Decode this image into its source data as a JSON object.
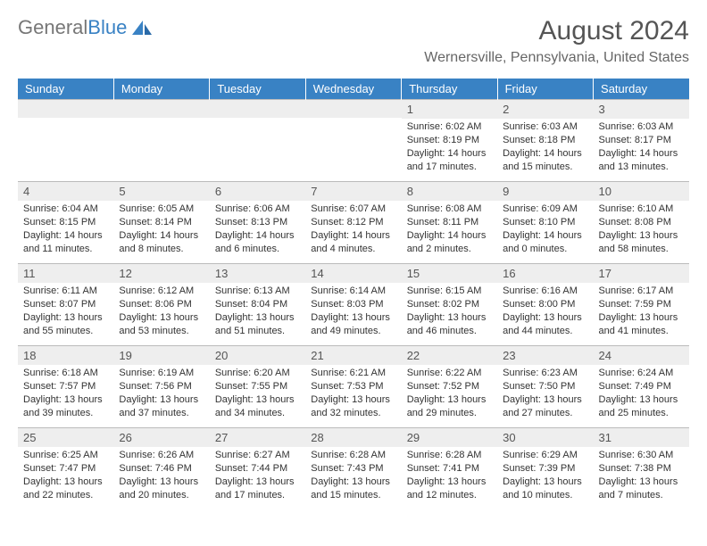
{
  "logo": {
    "text1": "General",
    "text2": "Blue"
  },
  "title": {
    "month_year": "August 2024",
    "location": "Wernersville, Pennsylvania, United States"
  },
  "colors": {
    "header_bg": "#3982c4",
    "header_fg": "#ffffff",
    "daynum_bg": "#eeeeee",
    "text": "#333333",
    "border": "#bbbbbb"
  },
  "day_headers": [
    "Sunday",
    "Monday",
    "Tuesday",
    "Wednesday",
    "Thursday",
    "Friday",
    "Saturday"
  ],
  "grid": {
    "cols": 7,
    "rows": 5,
    "blank_leading_cells": 4
  },
  "days": [
    {
      "n": "1",
      "sunrise": "6:02 AM",
      "sunset": "8:19 PM",
      "daylight": "14 hours and 17 minutes."
    },
    {
      "n": "2",
      "sunrise": "6:03 AM",
      "sunset": "8:18 PM",
      "daylight": "14 hours and 15 minutes."
    },
    {
      "n": "3",
      "sunrise": "6:03 AM",
      "sunset": "8:17 PM",
      "daylight": "14 hours and 13 minutes."
    },
    {
      "n": "4",
      "sunrise": "6:04 AM",
      "sunset": "8:15 PM",
      "daylight": "14 hours and 11 minutes."
    },
    {
      "n": "5",
      "sunrise": "6:05 AM",
      "sunset": "8:14 PM",
      "daylight": "14 hours and 8 minutes."
    },
    {
      "n": "6",
      "sunrise": "6:06 AM",
      "sunset": "8:13 PM",
      "daylight": "14 hours and 6 minutes."
    },
    {
      "n": "7",
      "sunrise": "6:07 AM",
      "sunset": "8:12 PM",
      "daylight": "14 hours and 4 minutes."
    },
    {
      "n": "8",
      "sunrise": "6:08 AM",
      "sunset": "8:11 PM",
      "daylight": "14 hours and 2 minutes."
    },
    {
      "n": "9",
      "sunrise": "6:09 AM",
      "sunset": "8:10 PM",
      "daylight": "14 hours and 0 minutes."
    },
    {
      "n": "10",
      "sunrise": "6:10 AM",
      "sunset": "8:08 PM",
      "daylight": "13 hours and 58 minutes."
    },
    {
      "n": "11",
      "sunrise": "6:11 AM",
      "sunset": "8:07 PM",
      "daylight": "13 hours and 55 minutes."
    },
    {
      "n": "12",
      "sunrise": "6:12 AM",
      "sunset": "8:06 PM",
      "daylight": "13 hours and 53 minutes."
    },
    {
      "n": "13",
      "sunrise": "6:13 AM",
      "sunset": "8:04 PM",
      "daylight": "13 hours and 51 minutes."
    },
    {
      "n": "14",
      "sunrise": "6:14 AM",
      "sunset": "8:03 PM",
      "daylight": "13 hours and 49 minutes."
    },
    {
      "n": "15",
      "sunrise": "6:15 AM",
      "sunset": "8:02 PM",
      "daylight": "13 hours and 46 minutes."
    },
    {
      "n": "16",
      "sunrise": "6:16 AM",
      "sunset": "8:00 PM",
      "daylight": "13 hours and 44 minutes."
    },
    {
      "n": "17",
      "sunrise": "6:17 AM",
      "sunset": "7:59 PM",
      "daylight": "13 hours and 41 minutes."
    },
    {
      "n": "18",
      "sunrise": "6:18 AM",
      "sunset": "7:57 PM",
      "daylight": "13 hours and 39 minutes."
    },
    {
      "n": "19",
      "sunrise": "6:19 AM",
      "sunset": "7:56 PM",
      "daylight": "13 hours and 37 minutes."
    },
    {
      "n": "20",
      "sunrise": "6:20 AM",
      "sunset": "7:55 PM",
      "daylight": "13 hours and 34 minutes."
    },
    {
      "n": "21",
      "sunrise": "6:21 AM",
      "sunset": "7:53 PM",
      "daylight": "13 hours and 32 minutes."
    },
    {
      "n": "22",
      "sunrise": "6:22 AM",
      "sunset": "7:52 PM",
      "daylight": "13 hours and 29 minutes."
    },
    {
      "n": "23",
      "sunrise": "6:23 AM",
      "sunset": "7:50 PM",
      "daylight": "13 hours and 27 minutes."
    },
    {
      "n": "24",
      "sunrise": "6:24 AM",
      "sunset": "7:49 PM",
      "daylight": "13 hours and 25 minutes."
    },
    {
      "n": "25",
      "sunrise": "6:25 AM",
      "sunset": "7:47 PM",
      "daylight": "13 hours and 22 minutes."
    },
    {
      "n": "26",
      "sunrise": "6:26 AM",
      "sunset": "7:46 PM",
      "daylight": "13 hours and 20 minutes."
    },
    {
      "n": "27",
      "sunrise": "6:27 AM",
      "sunset": "7:44 PM",
      "daylight": "13 hours and 17 minutes."
    },
    {
      "n": "28",
      "sunrise": "6:28 AM",
      "sunset": "7:43 PM",
      "daylight": "13 hours and 15 minutes."
    },
    {
      "n": "29",
      "sunrise": "6:28 AM",
      "sunset": "7:41 PM",
      "daylight": "13 hours and 12 minutes."
    },
    {
      "n": "30",
      "sunrise": "6:29 AM",
      "sunset": "7:39 PM",
      "daylight": "13 hours and 10 minutes."
    },
    {
      "n": "31",
      "sunrise": "6:30 AM",
      "sunset": "7:38 PM",
      "daylight": "13 hours and 7 minutes."
    }
  ],
  "labels": {
    "sunrise": "Sunrise:",
    "sunset": "Sunset:",
    "daylight": "Daylight:"
  }
}
